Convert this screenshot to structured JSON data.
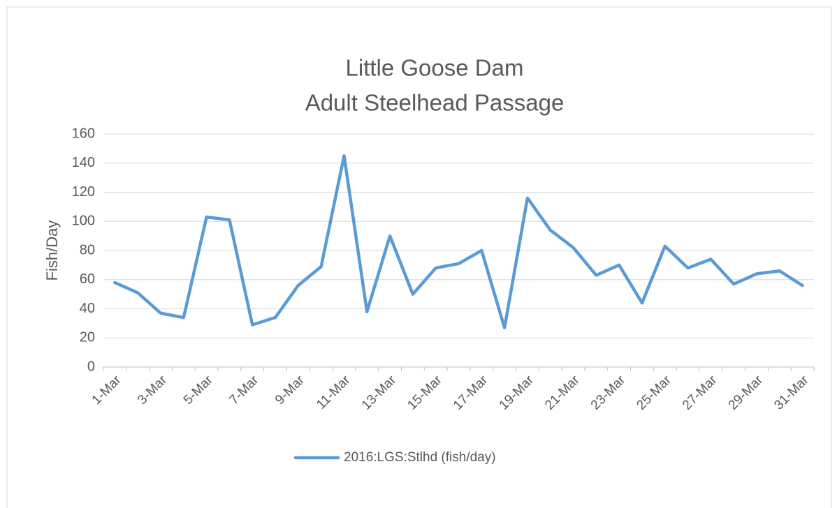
{
  "chart_data": {
    "type": "line",
    "title": [
      "Little Goose Dam",
      "Adult Steelhead Passage"
    ],
    "y_label": "Fish/Day",
    "categories": [
      "1-Mar",
      null,
      "3-Mar",
      null,
      "5-Mar",
      null,
      "7-Mar",
      null,
      "9-Mar",
      null,
      "11-Mar",
      null,
      "13-Mar",
      null,
      "15-Mar",
      null,
      "17-Mar",
      null,
      "19-Mar",
      null,
      "21-Mar",
      null,
      "23-Mar",
      null,
      "25-Mar",
      null,
      "27-Mar",
      null,
      "29-Mar",
      null,
      "31-Mar"
    ],
    "series": [
      {
        "name": "2016:LGS:Stlhd (fish/day)",
        "color": "#5b9bd5",
        "values": [
          58,
          51,
          37,
          34,
          103,
          101,
          29,
          34,
          56,
          69,
          145,
          38,
          90,
          50,
          68,
          71,
          80,
          27,
          116,
          94,
          82,
          63,
          70,
          44,
          83,
          68,
          74,
          57,
          64,
          66,
          56
        ]
      }
    ],
    "ylim": [
      0,
      160
    ],
    "yticks": [
      0,
      20,
      40,
      60,
      80,
      100,
      120,
      140,
      160
    ],
    "grid": true,
    "legend": "bottom"
  }
}
